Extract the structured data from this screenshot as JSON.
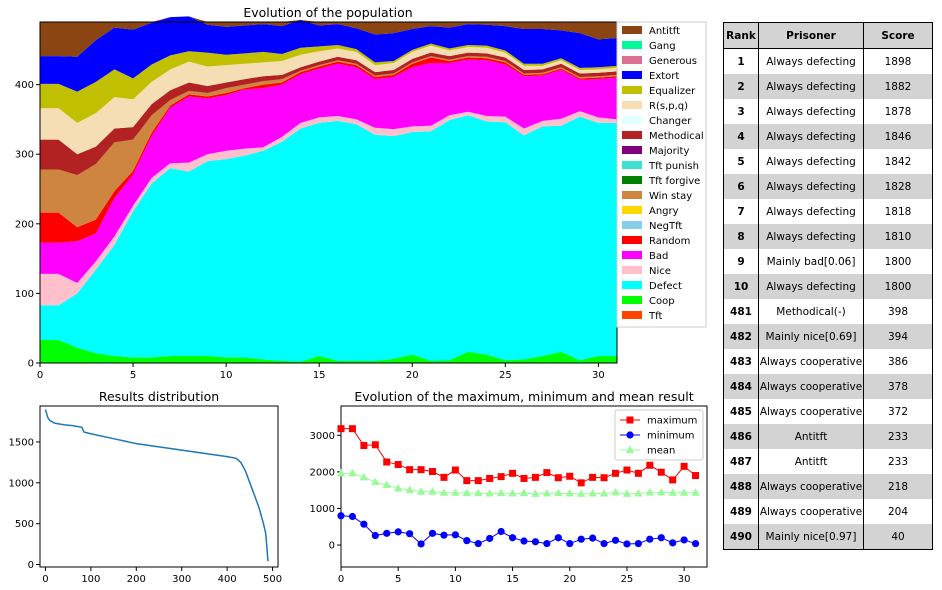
{
  "chart_data": [
    {
      "type": "area",
      "title": "Evolution of the population",
      "xlabel": "",
      "ylabel": "",
      "xlim": [
        0,
        31
      ],
      "ylim": [
        0,
        490
      ],
      "xticks": [
        0,
        5,
        10,
        15,
        20,
        25,
        30
      ],
      "yticks": [
        0,
        100,
        200,
        300,
        400
      ],
      "x": [
        0,
        1,
        2,
        3,
        4,
        5,
        6,
        7,
        8,
        9,
        10,
        11,
        12,
        13,
        14,
        15,
        16,
        17,
        18,
        19,
        20,
        21,
        22,
        23,
        24,
        25,
        26,
        27,
        28,
        29,
        30,
        31
      ],
      "total": 490,
      "legend": "right",
      "series": [
        {
          "name": "Tft",
          "color": "#ff4500",
          "values": [
            0,
            0,
            0,
            0,
            0,
            0,
            0,
            0,
            0,
            0,
            0,
            0,
            0,
            0,
            0,
            0,
            0,
            0,
            0,
            0,
            0,
            0,
            0,
            0,
            0,
            0,
            0,
            0,
            0,
            0,
            0,
            0
          ]
        },
        {
          "name": "Coop",
          "color": "#00ff00",
          "values": [
            33,
            33,
            22,
            14,
            10,
            8,
            8,
            10,
            10,
            10,
            8,
            8,
            5,
            3,
            2,
            10,
            3,
            3,
            3,
            6,
            12,
            3,
            4,
            16,
            12,
            4,
            5,
            10,
            16,
            4,
            10,
            10
          ]
        },
        {
          "name": "Defect",
          "color": "#00ffff",
          "values": [
            50,
            50,
            78,
            120,
            160,
            210,
            250,
            270,
            265,
            280,
            285,
            290,
            300,
            315,
            335,
            335,
            345,
            340,
            325,
            320,
            320,
            330,
            345,
            340,
            335,
            342,
            322,
            330,
            325,
            350,
            335,
            335
          ]
        },
        {
          "name": "Nice",
          "color": "#ffc0cb",
          "values": [
            45,
            45,
            15,
            12,
            12,
            8,
            8,
            7,
            13,
            10,
            12,
            10,
            5,
            7,
            8,
            8,
            7,
            7,
            10,
            10,
            8,
            8,
            7,
            5,
            8,
            8,
            10,
            8,
            10,
            8,
            8,
            5
          ]
        },
        {
          "name": "Bad",
          "color": "#ff00ff",
          "values": [
            45,
            45,
            60,
            40,
            55,
            45,
            60,
            80,
            95,
            80,
            80,
            85,
            85,
            75,
            70,
            70,
            75,
            75,
            70,
            75,
            85,
            90,
            75,
            75,
            80,
            75,
            75,
            65,
            70,
            45,
            55,
            60
          ]
        },
        {
          "name": "Random",
          "color": "#ff0000",
          "values": [
            43,
            43,
            20,
            20,
            10,
            5,
            5,
            3,
            3,
            3,
            3,
            2,
            5,
            3,
            3,
            3,
            3,
            3,
            3,
            3,
            5,
            8,
            3,
            3,
            3,
            3,
            2,
            2,
            2,
            2,
            2,
            2
          ]
        },
        {
          "name": "NegTft",
          "color": "#87ceeb",
          "values": [
            0,
            0,
            0,
            0,
            0,
            0,
            0,
            0,
            0,
            0,
            0,
            0,
            0,
            0,
            0,
            0,
            0,
            0,
            0,
            0,
            0,
            0,
            0,
            0,
            0,
            0,
            0,
            0,
            0,
            0,
            0,
            0
          ]
        },
        {
          "name": "Angry",
          "color": "#ffd700",
          "values": [
            0,
            0,
            0,
            0,
            0,
            0,
            0,
            0,
            0,
            0,
            0,
            0,
            0,
            0,
            0,
            0,
            0,
            0,
            0,
            0,
            0,
            0,
            0,
            0,
            0,
            0,
            0,
            0,
            0,
            0,
            0,
            0
          ]
        },
        {
          "name": "Win stay",
          "color": "#cd853f",
          "values": [
            62,
            62,
            75,
            80,
            70,
            45,
            25,
            8,
            5,
            5,
            7,
            5,
            5,
            5,
            2,
            2,
            2,
            2,
            2,
            2,
            2,
            2,
            2,
            2,
            2,
            2,
            2,
            2,
            2,
            2,
            2,
            2
          ]
        },
        {
          "name": "Tft forgive",
          "color": "#008000",
          "values": [
            0,
            0,
            0,
            0,
            0,
            0,
            0,
            0,
            0,
            0,
            0,
            0,
            0,
            0,
            0,
            0,
            0,
            0,
            0,
            0,
            0,
            0,
            0,
            0,
            0,
            0,
            0,
            0,
            0,
            0,
            0,
            0
          ]
        },
        {
          "name": "Tft punish",
          "color": "#40e0d0",
          "values": [
            0,
            0,
            0,
            0,
            0,
            0,
            0,
            0,
            0,
            0,
            0,
            0,
            0,
            0,
            0,
            0,
            0,
            0,
            0,
            0,
            0,
            0,
            0,
            0,
            0,
            0,
            0,
            0,
            0,
            0,
            0,
            0
          ]
        },
        {
          "name": "Majority",
          "color": "#800080",
          "values": [
            0,
            0,
            0,
            0,
            0,
            0,
            0,
            0,
            0,
            0,
            0,
            0,
            0,
            0,
            0,
            0,
            0,
            0,
            0,
            0,
            0,
            0,
            0,
            0,
            0,
            0,
            0,
            0,
            0,
            0,
            0,
            0
          ]
        },
        {
          "name": "Methodical",
          "color": "#b22222",
          "values": [
            43,
            43,
            30,
            25,
            20,
            18,
            16,
            14,
            12,
            10,
            8,
            8,
            7,
            6,
            5,
            5,
            5,
            5,
            5,
            5,
            5,
            5,
            5,
            5,
            5,
            5,
            5,
            5,
            5,
            5,
            5,
            5
          ]
        },
        {
          "name": "Changer",
          "color": "#e0ffff",
          "values": [
            0,
            0,
            0,
            0,
            0,
            0,
            0,
            0,
            0,
            0,
            0,
            0,
            0,
            0,
            0,
            0,
            0,
            0,
            0,
            0,
            0,
            0,
            0,
            0,
            0,
            0,
            0,
            0,
            0,
            0,
            0,
            0
          ]
        },
        {
          "name": "R(s,p,q)",
          "color": "#f5deb3",
          "values": [
            45,
            45,
            45,
            48,
            45,
            40,
            32,
            30,
            30,
            28,
            25,
            22,
            20,
            20,
            18,
            15,
            12,
            12,
            10,
            10,
            10,
            10,
            8,
            8,
            8,
            7,
            6,
            5,
            5,
            5,
            5,
            5
          ]
        },
        {
          "name": "Equalizer",
          "color": "#c0c000",
          "values": [
            35,
            35,
            45,
            45,
            40,
            30,
            25,
            20,
            15,
            20,
            15,
            15,
            15,
            10,
            10,
            7,
            5,
            4,
            4,
            3,
            3,
            3,
            3,
            3,
            3,
            3,
            3,
            3,
            3,
            3,
            3,
            3
          ]
        },
        {
          "name": "Extort",
          "color": "#0000ff",
          "values": [
            40,
            40,
            50,
            60,
            60,
            70,
            60,
            55,
            50,
            40,
            40,
            40,
            40,
            40,
            40,
            30,
            30,
            30,
            40,
            40,
            30,
            25,
            30,
            30,
            30,
            35,
            50,
            50,
            40,
            50,
            40,
            40
          ]
        },
        {
          "name": "Generous",
          "color": "#db7093",
          "values": [
            0,
            0,
            0,
            0,
            0,
            0,
            0,
            0,
            0,
            0,
            0,
            0,
            0,
            0,
            0,
            0,
            0,
            0,
            0,
            0,
            0,
            0,
            0,
            0,
            0,
            0,
            0,
            0,
            0,
            0,
            0,
            0
          ]
        },
        {
          "name": "Gang",
          "color": "#00fa9a",
          "values": [
            0,
            0,
            0,
            0,
            0,
            0,
            0,
            0,
            0,
            0,
            0,
            0,
            0,
            0,
            0,
            0,
            0,
            0,
            0,
            0,
            0,
            0,
            0,
            0,
            0,
            0,
            0,
            0,
            0,
            0,
            0,
            0
          ]
        },
        {
          "name": "Antitft",
          "color": "#8b4513",
          "values": "remainder"
        }
      ]
    },
    {
      "type": "line",
      "title": "Results distribution",
      "xlabel": "",
      "ylabel": "",
      "xlim": [
        -12,
        512
      ],
      "ylim": [
        -30,
        1940
      ],
      "xticks": [
        0,
        100,
        200,
        300,
        400,
        500
      ],
      "yticks": [
        0,
        500,
        1000,
        1500
      ],
      "color": "#1f77b4",
      "x": [
        0,
        5,
        10,
        20,
        40,
        60,
        80,
        85,
        100,
        150,
        200,
        250,
        300,
        350,
        400,
        420,
        430,
        440,
        450,
        460,
        470,
        480,
        485,
        490
      ],
      "y": [
        1898,
        1800,
        1760,
        1730,
        1710,
        1700,
        1680,
        1620,
        1600,
        1540,
        1480,
        1440,
        1400,
        1360,
        1320,
        1300,
        1250,
        1150,
        1000,
        850,
        700,
        500,
        380,
        40
      ]
    },
    {
      "type": "line",
      "title": "Evolution of the maximum, minimum and mean result",
      "xlabel": "",
      "ylabel": "",
      "xlim": [
        0,
        32
      ],
      "ylim": [
        -600,
        3800
      ],
      "xticks": [
        0,
        5,
        10,
        15,
        20,
        25,
        30
      ],
      "yticks": [
        0,
        1000,
        2000,
        3000
      ],
      "legend": "top-right",
      "x": [
        0,
        1,
        2,
        3,
        4,
        5,
        6,
        7,
        8,
        9,
        10,
        11,
        12,
        13,
        14,
        15,
        16,
        17,
        18,
        19,
        20,
        21,
        22,
        23,
        24,
        25,
        26,
        27,
        28,
        29,
        30,
        31
      ],
      "series": [
        {
          "name": "maximum",
          "color": "#ff0000",
          "marker": "square",
          "values": [
            3180,
            3180,
            2720,
            2740,
            2270,
            2200,
            2060,
            2060,
            2010,
            1850,
            2050,
            1760,
            1760,
            1820,
            1870,
            1960,
            1820,
            1850,
            1980,
            1840,
            1880,
            1700,
            1850,
            1840,
            1960,
            2050,
            1960,
            2180,
            1990,
            1780,
            2150,
            1900
          ]
        },
        {
          "name": "minimum",
          "color": "#0000ff",
          "marker": "circle",
          "values": [
            800,
            780,
            570,
            260,
            320,
            360,
            310,
            30,
            320,
            270,
            280,
            120,
            40,
            180,
            370,
            200,
            110,
            90,
            40,
            200,
            40,
            160,
            190,
            40,
            130,
            30,
            40,
            160,
            200,
            60,
            140,
            40
          ]
        },
        {
          "name": "mean",
          "color": "#98fb98",
          "marker": "triangle",
          "values": [
            1960,
            1960,
            1850,
            1720,
            1640,
            1550,
            1500,
            1460,
            1460,
            1430,
            1430,
            1420,
            1420,
            1410,
            1420,
            1410,
            1420,
            1400,
            1410,
            1420,
            1410,
            1400,
            1410,
            1410,
            1440,
            1400,
            1410,
            1440,
            1440,
            1430,
            1430,
            1430
          ]
        }
      ]
    }
  ],
  "table": {
    "headers": [
      "Rank",
      "Prisoner",
      "Score"
    ],
    "rows": [
      [
        "1",
        "Always defecting",
        "1898"
      ],
      [
        "2",
        "Always defecting",
        "1882"
      ],
      [
        "3",
        "Always defecting",
        "1878"
      ],
      [
        "4",
        "Always defecting",
        "1846"
      ],
      [
        "5",
        "Always defecting",
        "1842"
      ],
      [
        "6",
        "Always defecting",
        "1828"
      ],
      [
        "7",
        "Always defecting",
        "1818"
      ],
      [
        "8",
        "Always defecting",
        "1810"
      ],
      [
        "9",
        "Mainly bad[0.06]",
        "1800"
      ],
      [
        "10",
        "Always defecting",
        "1800"
      ],
      [
        "481",
        "Methodical(-)",
        "398"
      ],
      [
        "482",
        "Mainly nice[0.69]",
        "394"
      ],
      [
        "483",
        "Always cooperative",
        "386"
      ],
      [
        "484",
        "Always cooperative",
        "378"
      ],
      [
        "485",
        "Always cooperative",
        "372"
      ],
      [
        "486",
        "Antitft",
        "233"
      ],
      [
        "487",
        "Antitft",
        "233"
      ],
      [
        "488",
        "Always cooperative",
        "218"
      ],
      [
        "489",
        "Always cooperative",
        "204"
      ],
      [
        "490",
        "Mainly nice[0.97]",
        "40"
      ]
    ]
  }
}
